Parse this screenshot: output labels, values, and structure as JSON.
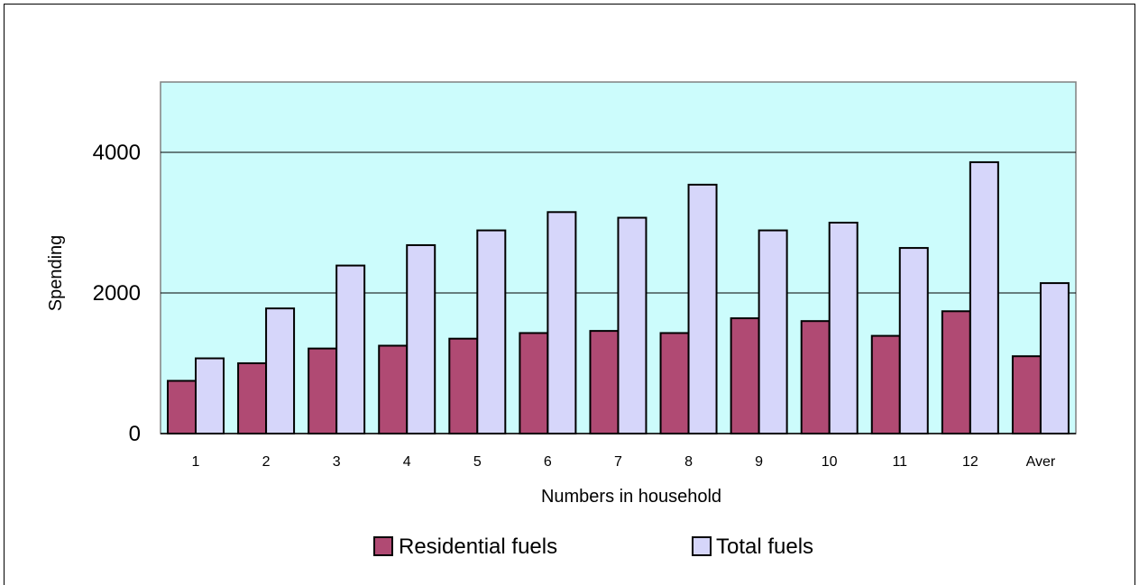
{
  "chart_data": {
    "type": "bar",
    "title": "",
    "xlabel": "Numbers in household",
    "ylabel": "Spending",
    "ylim": [
      0,
      5000
    ],
    "yticks": [
      0,
      2000,
      4000
    ],
    "grid": true,
    "legend_position": "bottom",
    "categories": [
      "1",
      "2",
      "3",
      "4",
      "5",
      "6",
      "7",
      "8",
      "9",
      "10",
      "11",
      "12",
      "Aver"
    ],
    "series": [
      {
        "name": "Residential fuels",
        "color": "#B04A73",
        "values": [
          750,
          1000,
          1210,
          1250,
          1350,
          1430,
          1460,
          1430,
          1640,
          1600,
          1390,
          1740,
          1100
        ]
      },
      {
        "name": "Total fuels",
        "color": "#D6D6FA",
        "values": [
          1070,
          1780,
          2390,
          2680,
          2890,
          3150,
          3070,
          3540,
          2890,
          3000,
          2640,
          3860,
          2140
        ]
      }
    ],
    "plot_background": "#CCFCFC"
  }
}
